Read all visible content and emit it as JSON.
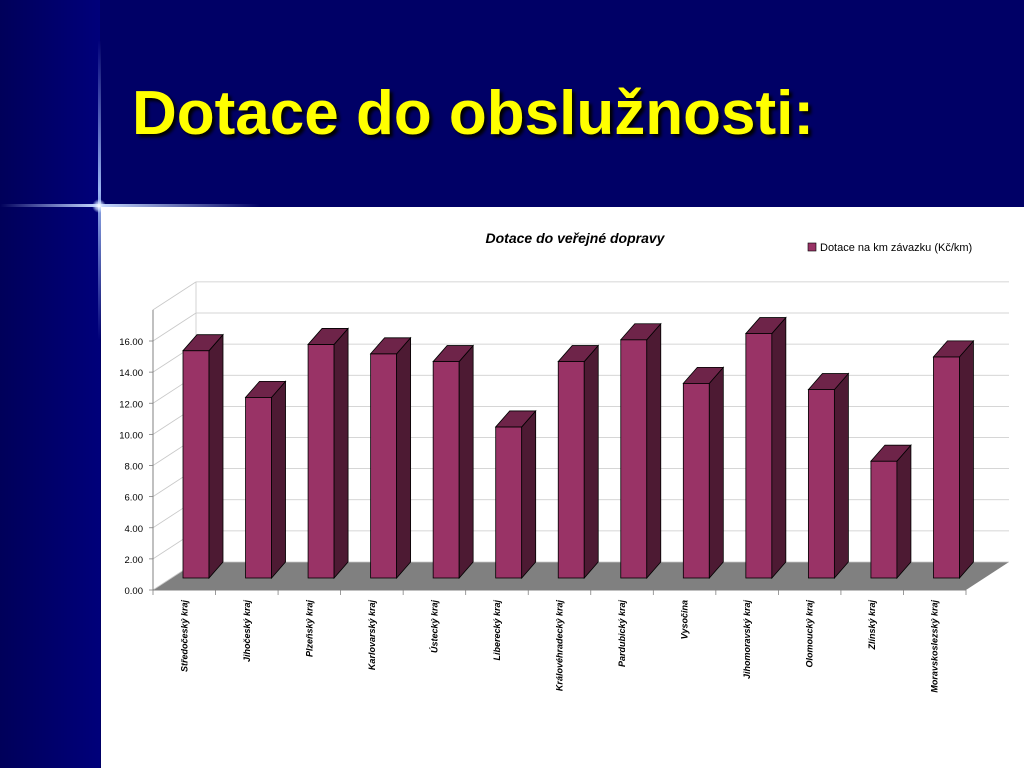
{
  "slide": {
    "title": "Dotace do obslužnosti:"
  },
  "colors": {
    "background": "#000066",
    "title": "#ffff00",
    "bar_front": "#993366",
    "bar_side": "#4d1a33",
    "bar_top": "#6e2449",
    "floor": "#808080"
  },
  "chart_data": {
    "type": "bar",
    "title": "Dotace do veřejné dopravy",
    "categories": [
      "Středočeský kraj",
      "Jihočeský kraj",
      "Plzeňský kraj",
      "Karlovarský kraj",
      "Ústecký kraj",
      "Liberecký kraj",
      "Královéhradecký kraj",
      "Pardubický kraj",
      "Vysočina",
      "Jihomoravský kraj",
      "Olomoucký kraj",
      "Zlínský kraj",
      "Moravskoslezský kraj"
    ],
    "series": [
      {
        "name": "Dotace na km závazku (Kč/km)",
        "values": [
          14.8,
          11.8,
          15.2,
          14.6,
          14.1,
          9.9,
          14.1,
          15.5,
          12.7,
          15.9,
          12.3,
          7.7,
          14.4
        ]
      }
    ],
    "ylim": [
      0,
      16
    ],
    "yticks": [
      "0.00",
      "2.00",
      "4.00",
      "6.00",
      "8.00",
      "10.00",
      "12.00",
      "14.00",
      "16.00"
    ],
    "grid": true,
    "legend": "top-right",
    "style": "3d-column"
  }
}
